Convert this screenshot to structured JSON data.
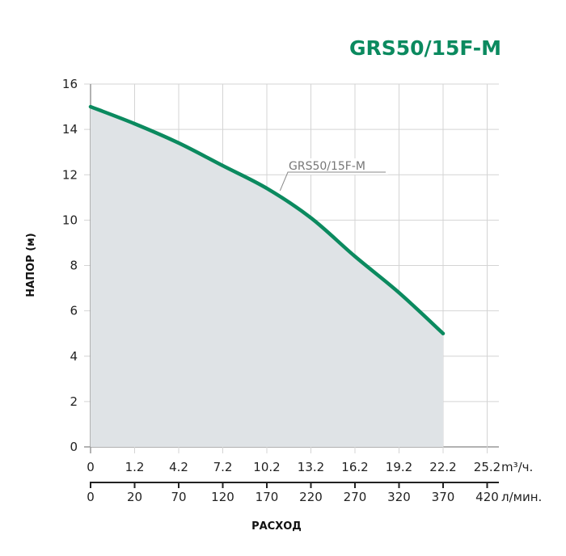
{
  "chart_data": {
    "type": "area",
    "title": "GRS50/15F-M",
    "ylabel": "НАПОР (м)",
    "xlabel": "РАСХОД",
    "ylim": [
      0,
      16
    ],
    "yticks": [
      0,
      2,
      4,
      6,
      8,
      10,
      12,
      14,
      16
    ],
    "x_primary": {
      "unit": "m³/ч.",
      "ticks": [
        "0",
        "1.2",
        "4.2",
        "7.2",
        "10.2",
        "13.2",
        "16.2",
        "19.2",
        "22.2",
        "25.2"
      ]
    },
    "x_secondary": {
      "unit": "л/мин.",
      "ticks": [
        "0",
        "20",
        "70",
        "120",
        "170",
        "220",
        "270",
        "320",
        "370",
        "420"
      ]
    },
    "grid": true,
    "series": [
      {
        "name": "GRS50/15F-M",
        "color": "#0b8a5f",
        "fill": "#dfe3e6",
        "x": [
          "0",
          "1.2",
          "4.2",
          "7.2",
          "10.2",
          "13.2",
          "16.2",
          "19.2",
          "22.2"
        ],
        "y": [
          15.0,
          14.25,
          13.4,
          12.4,
          11.4,
          10.1,
          8.4,
          6.8,
          5.0
        ]
      }
    ]
  }
}
